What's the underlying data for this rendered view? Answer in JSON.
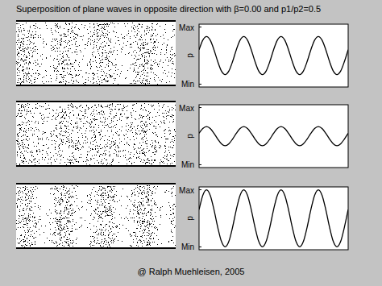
{
  "title": "Superposition of plane waves in opposite direction with β=0.00 and p1/p2=0.5",
  "footer": "@ Ralph Muehleisen, 2005",
  "chart_data": [
    {
      "type": "line",
      "y_label": "p",
      "color": "#000000",
      "tick_labels": "y",
      "xlim": [
        0,
        40
      ],
      "ylim": [
        -1.65,
        1.65
      ],
      "yticks": [
        {
          "value": 1.5,
          "label": "Max"
        },
        {
          "value": -1.5,
          "label": "Min"
        }
      ],
      "x": [
        0,
        1,
        2,
        3,
        4,
        5,
        6,
        7,
        8,
        9,
        10,
        11,
        12,
        13,
        14,
        15,
        16,
        17,
        18,
        19,
        20,
        21,
        22,
        23,
        24,
        25,
        26,
        27,
        28,
        29,
        30,
        31,
        32,
        33,
        34,
        35,
        36,
        37,
        38,
        39,
        40
      ],
      "values": [
        0.31,
        0.81,
        1,
        0.81,
        0.31,
        -0.31,
        -0.81,
        -1,
        -0.81,
        -0.31,
        0.31,
        0.81,
        1,
        0.81,
        0.31,
        -0.31,
        -0.81,
        -1,
        -0.81,
        -0.31,
        0.31,
        0.81,
        1,
        0.81,
        0.31,
        -0.31,
        -0.81,
        -1,
        -0.81,
        -0.31,
        0.31,
        0.81,
        1,
        0.81,
        0.31,
        -0.31,
        -0.81,
        -1,
        -0.81,
        -0.31,
        0.31
      ]
    },
    {
      "type": "line",
      "y_label": "p",
      "color": "#000000",
      "tick_labels": "y",
      "xlim": [
        0,
        40
      ],
      "ylim": [
        -1.65,
        1.65
      ],
      "yticks": [
        {
          "value": 1.5,
          "label": "Max"
        },
        {
          "value": -1.5,
          "label": "Min"
        }
      ],
      "x": [
        0,
        1,
        2,
        3,
        4,
        5,
        6,
        7,
        8,
        9,
        10,
        11,
        12,
        13,
        14,
        15,
        16,
        17,
        18,
        19,
        20,
        21,
        22,
        23,
        24,
        25,
        26,
        27,
        28,
        29,
        30,
        31,
        32,
        33,
        34,
        35,
        36,
        37,
        38,
        39,
        40
      ],
      "values": [
        0.15,
        0.4,
        0.5,
        0.4,
        0.15,
        -0.15,
        -0.4,
        -0.5,
        -0.4,
        -0.15,
        0.15,
        0.4,
        0.5,
        0.4,
        0.15,
        -0.15,
        -0.4,
        -0.5,
        -0.4,
        -0.15,
        0.15,
        0.4,
        0.5,
        0.4,
        0.15,
        -0.15,
        -0.4,
        -0.5,
        -0.4,
        -0.15,
        0.15,
        0.4,
        0.5,
        0.4,
        0.15,
        -0.15,
        -0.4,
        -0.5,
        -0.4,
        -0.15,
        0.15
      ]
    },
    {
      "type": "line",
      "y_label": "p",
      "color": "#000000",
      "tick_labels": "y",
      "xlim": [
        0,
        40
      ],
      "ylim": [
        -1.65,
        1.65
      ],
      "yticks": [
        {
          "value": 1.5,
          "label": "Max"
        },
        {
          "value": -1.5,
          "label": "Min"
        }
      ],
      "x": [
        0,
        1,
        2,
        3,
        4,
        5,
        6,
        7,
        8,
        9,
        10,
        11,
        12,
        13,
        14,
        15,
        16,
        17,
        18,
        19,
        20,
        21,
        22,
        23,
        24,
        25,
        26,
        27,
        28,
        29,
        30,
        31,
        32,
        33,
        34,
        35,
        36,
        37,
        38,
        39,
        40
      ],
      "values": [
        0.46,
        1.21,
        1.5,
        1.21,
        0.46,
        -0.46,
        -1.21,
        -1.5,
        -1.21,
        -0.46,
        0.46,
        1.21,
        1.5,
        1.21,
        0.46,
        -0.46,
        -1.21,
        -1.5,
        -1.21,
        -0.46,
        0.46,
        1.21,
        1.5,
        1.21,
        0.46,
        -0.46,
        -1.21,
        -1.5,
        -1.21,
        -0.46,
        0.46,
        1.21,
        1.5,
        1.21,
        0.46,
        -0.46,
        -1.21,
        -1.5,
        -1.21,
        -0.46,
        0.46
      ]
    }
  ]
}
